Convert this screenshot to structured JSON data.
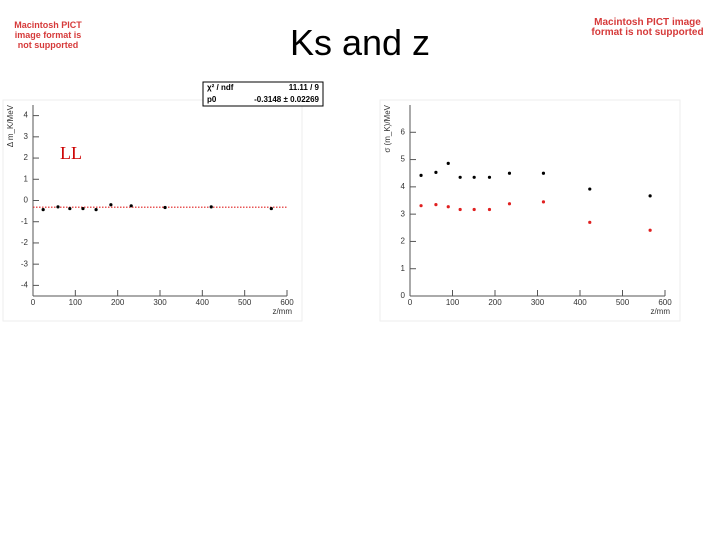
{
  "slide": {
    "title": "Ks and z",
    "pict_notice": "Macintosh PICT image format is not supported"
  },
  "chart_data": [
    {
      "type": "scatter",
      "annotation": "LL",
      "xlabel": "z/mm",
      "ylabel": "Δ m_K/MeV",
      "xlim": [
        0,
        600
      ],
      "xticks": [
        0,
        100,
        200,
        300,
        400,
        500,
        600
      ],
      "ylim": [
        -4.5,
        4.5
      ],
      "yticks": [
        -4,
        -3,
        -2,
        -1,
        0,
        1,
        2,
        3,
        4
      ],
      "series": [
        {
          "color": "#000000",
          "x": [
            24,
            59,
            87,
            118,
            149,
            184,
            232,
            312,
            421,
            563
          ],
          "values": [
            -0.43,
            -0.3,
            -0.38,
            -0.38,
            -0.43,
            -0.2,
            -0.25,
            -0.33,
            -0.3,
            -0.38
          ]
        }
      ],
      "fit_line": -0.3148,
      "fit_color": "#e02020",
      "stats": [
        [
          "χ² / ndf",
          "11.11 / 9"
        ],
        [
          "p0",
          "-0.3148 ± 0.02269"
        ]
      ]
    },
    {
      "type": "scatter",
      "xlabel": "z/mm",
      "ylabel": "σ (m_K)/MeV",
      "xlim": [
        0,
        600
      ],
      "xticks": [
        0,
        100,
        200,
        300,
        400,
        500,
        600
      ],
      "ylim": [
        0,
        7
      ],
      "yticks": [
        0,
        1,
        2,
        3,
        4,
        5,
        6
      ],
      "series": [
        {
          "color": "#000000",
          "x": [
            26,
            61,
            90,
            118,
            151,
            187,
            234,
            314,
            423,
            565
          ],
          "values": [
            4.42,
            4.53,
            4.86,
            4.35,
            4.35,
            4.35,
            4.5,
            4.5,
            3.92,
            3.67
          ]
        },
        {
          "color": "#e02020",
          "x": [
            26,
            61,
            90,
            118,
            151,
            187,
            234,
            314,
            423,
            565
          ],
          "values": [
            3.31,
            3.35,
            3.27,
            3.17,
            3.17,
            3.17,
            3.38,
            3.45,
            2.7,
            2.41
          ]
        }
      ]
    }
  ]
}
